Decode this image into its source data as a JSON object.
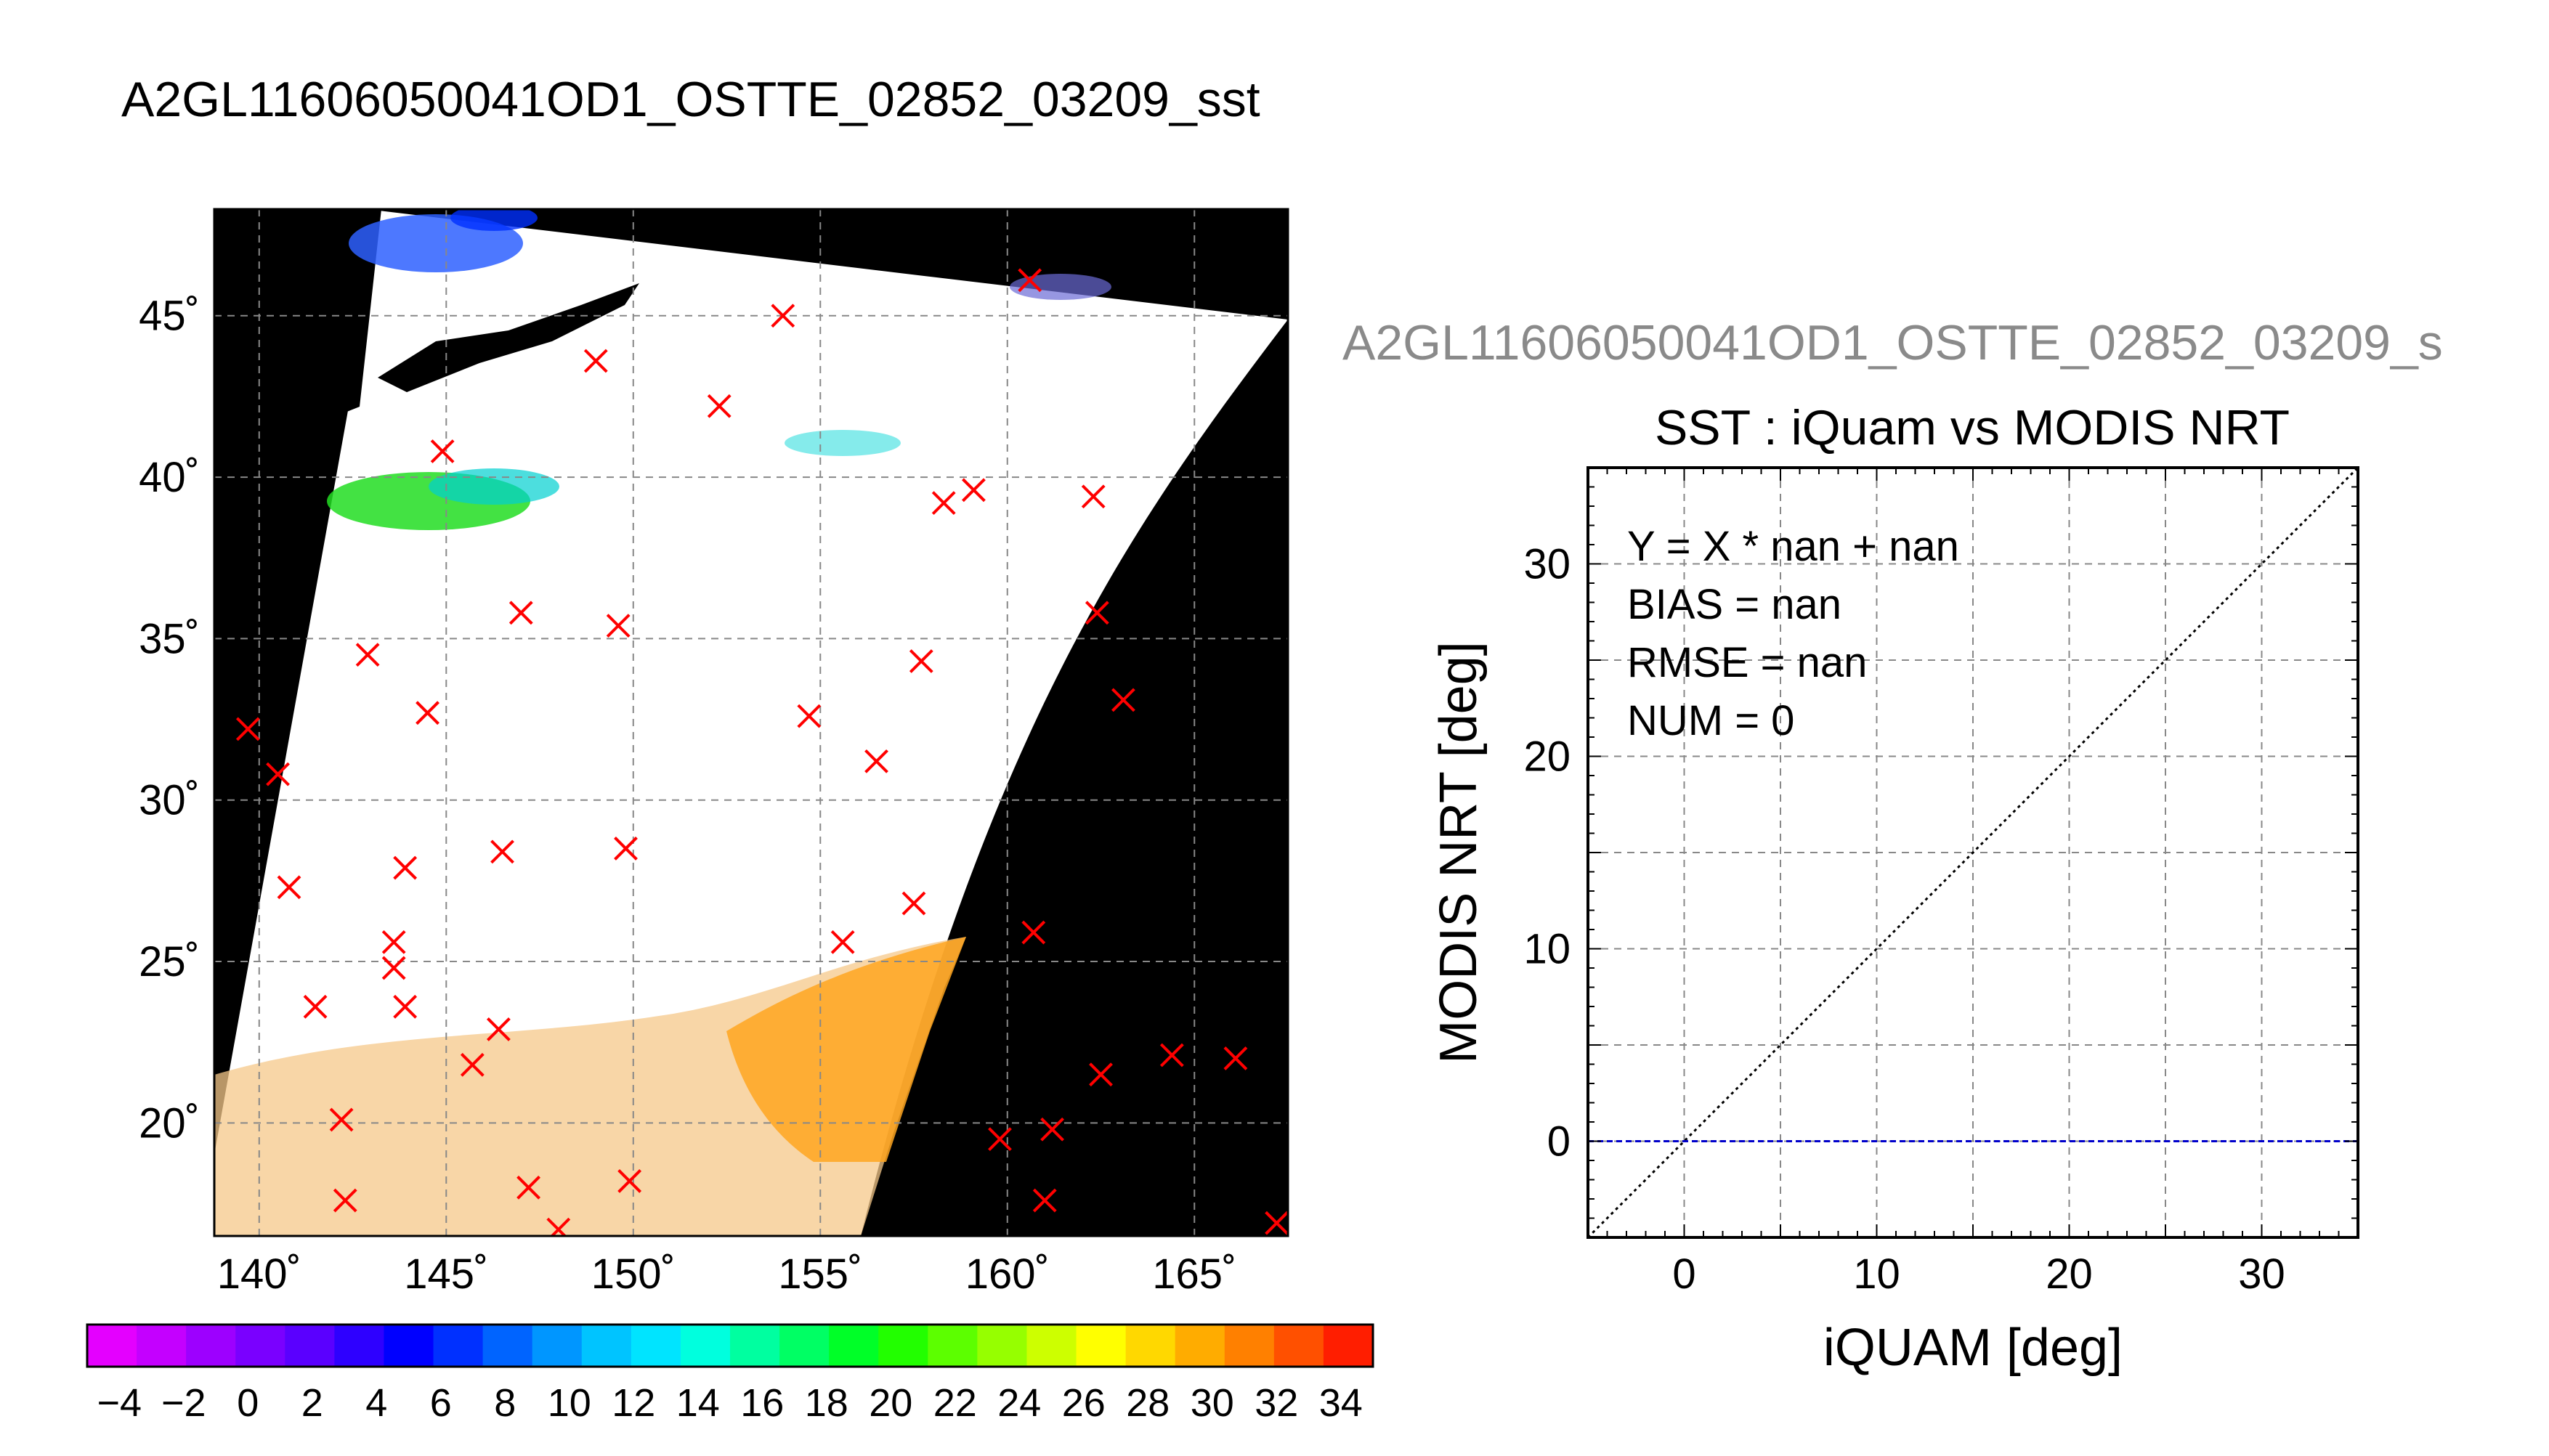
{
  "map_title": "A2GL11606050041OD1_OSTTE_02852_03209_sst",
  "scatter_title_top": "A2GL11606050041OD1_OSTTE_02852_03209_s",
  "map": {
    "lat_ticks": [
      "20˚",
      "25˚",
      "30˚",
      "35˚",
      "40˚",
      "45˚"
    ],
    "lon_ticks": [
      "140˚",
      "145˚",
      "150˚",
      "155˚",
      "160˚",
      "165˚"
    ],
    "lat_values": [
      20,
      25,
      30,
      35,
      40,
      45
    ],
    "lon_values": [
      140,
      145,
      150,
      155,
      160,
      165
    ],
    "lon_range": [
      138.8,
      167.5
    ],
    "lat_range": [
      16.5,
      48.3
    ],
    "marker_color": "#ff0000",
    "markers": [
      [
        160.6,
        46.1
      ],
      [
        154.0,
        45.0
      ],
      [
        149.0,
        43.6
      ],
      [
        152.3,
        42.2
      ],
      [
        144.9,
        40.8
      ],
      [
        159.1,
        39.6
      ],
      [
        158.3,
        39.2
      ],
      [
        162.3,
        39.4
      ],
      [
        147.0,
        35.8
      ],
      [
        149.6,
        35.4
      ],
      [
        162.4,
        35.8
      ],
      [
        142.9,
        34.5
      ],
      [
        157.7,
        34.3
      ],
      [
        144.5,
        32.7
      ],
      [
        154.7,
        32.6
      ],
      [
        163.1,
        33.1
      ],
      [
        139.7,
        32.2
      ],
      [
        156.5,
        31.2
      ],
      [
        140.5,
        30.8
      ],
      [
        140.8,
        27.3
      ],
      [
        146.5,
        28.4
      ],
      [
        149.8,
        28.5
      ],
      [
        143.9,
        27.9
      ],
      [
        157.5,
        26.8
      ],
      [
        160.7,
        25.9
      ],
      [
        143.6,
        25.6
      ],
      [
        155.6,
        25.6
      ],
      [
        143.6,
        24.8
      ],
      [
        141.5,
        23.6
      ],
      [
        143.9,
        23.6
      ],
      [
        146.4,
        22.9
      ],
      [
        145.7,
        21.8
      ],
      [
        164.4,
        22.1
      ],
      [
        166.1,
        22.0
      ],
      [
        162.5,
        21.5
      ],
      [
        142.2,
        20.1
      ],
      [
        159.8,
        19.5
      ],
      [
        161.2,
        19.8
      ],
      [
        142.3,
        17.6
      ],
      [
        147.2,
        18.0
      ],
      [
        149.9,
        18.2
      ],
      [
        161.0,
        17.6
      ],
      [
        167.2,
        16.9
      ],
      [
        148.0,
        16.7
      ]
    ]
  },
  "colorbar": {
    "labels": [
      "−4",
      "−2",
      "0",
      "2",
      "4",
      "6",
      "8",
      "10",
      "12",
      "14",
      "16",
      "18",
      "20",
      "22",
      "24",
      "26",
      "28",
      "30",
      "32",
      "34"
    ],
    "colors": [
      "#e400ff",
      "#c400ff",
      "#9d00ff",
      "#7a00ff",
      "#5a00ff",
      "#2e00ff",
      "#0000ff",
      "#0030ff",
      "#0064ff",
      "#0096ff",
      "#00c4ff",
      "#00e4ff",
      "#00ffde",
      "#00ffa0",
      "#00ff64",
      "#00ff28",
      "#22ff00",
      "#5cff00",
      "#96ff00",
      "#cdff00",
      "#ffff00",
      "#ffd800",
      "#ffac00",
      "#ff8000",
      "#ff5000",
      "#ff1e00"
    ]
  },
  "chart_data": {
    "type": "scatter",
    "title": "SST : iQuam vs MODIS NRT",
    "xlabel": "iQUAM [deg]",
    "ylabel": "MODIS NRT [deg]",
    "xlim": [
      -5,
      35
    ],
    "ylim": [
      -5,
      35
    ],
    "xticks": [
      0,
      10,
      20,
      30
    ],
    "yticks": [
      0,
      10,
      20,
      30
    ],
    "grid": true,
    "points": [],
    "reference_lines": [
      {
        "name": "y=x",
        "color": "#000000",
        "style": "dotted"
      },
      {
        "name": "y=0",
        "color": "#0000cc",
        "style": "dashed"
      }
    ],
    "stats": {
      "fit": "Y = X * nan + nan",
      "bias": "BIAS = nan",
      "rmse": "RMSE = nan",
      "num": "NUM = 0"
    }
  }
}
